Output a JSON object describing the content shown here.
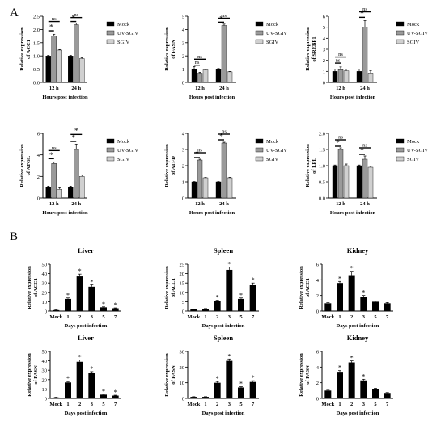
{
  "panels": [
    {
      "letter": "A"
    },
    {
      "letter": "B"
    }
  ],
  "chart_data": [
    {
      "type": "bar",
      "panel": "A",
      "categories": [
        "12 h",
        "24 h"
      ],
      "series": [
        {
          "name": "Mock",
          "color": "#000000",
          "values": [
            1.0,
            1.0
          ],
          "errors": [
            0.02,
            0.02
          ]
        },
        {
          "name": "UV-SGIV",
          "color": "#9a9a9a",
          "values": [
            1.75,
            2.18
          ],
          "errors": [
            0.07,
            0.06
          ]
        },
        {
          "name": "SGIV",
          "color": "#d0d0d0",
          "values": [
            1.22,
            0.9
          ],
          "errors": [
            0.02,
            0.03
          ]
        }
      ],
      "xlabel": "Hours post infection",
      "ylabel": [
        "Relative expression",
        "of ACC1"
      ],
      "ylim": [
        0,
        2.5
      ],
      "yticks": [
        0.0,
        0.5,
        1.0,
        1.5,
        2.0,
        2.5
      ],
      "ytick_labels": [
        "0.0",
        "0.5",
        "1.0",
        "1.5",
        "2.0",
        "2.5"
      ],
      "legend": "right",
      "annotations": [
        {
          "text": "ns",
          "category": 0,
          "from": 0,
          "to": 2,
          "y": 2.3
        },
        {
          "text": "*",
          "category": 0,
          "from": 0,
          "to": 1,
          "y": 1.95
        },
        {
          "text": "ns",
          "category": 1,
          "from": 0,
          "to": 2,
          "y": 2.45
        },
        {
          "text": "*",
          "category": 1,
          "from": 0,
          "to": 1,
          "y": 2.3
        }
      ]
    },
    {
      "type": "bar",
      "panel": "A",
      "categories": [
        "12 h",
        "24 h"
      ],
      "series": [
        {
          "name": "Mock",
          "color": "#000000",
          "values": [
            1.0,
            1.0
          ],
          "errors": [
            0.2,
            0.05
          ]
        },
        {
          "name": "UV-SGIV",
          "color": "#9a9a9a",
          "values": [
            0.7,
            4.3
          ],
          "errors": [
            0.07,
            0.1
          ]
        },
        {
          "name": "SGIV",
          "color": "#d0d0d0",
          "values": [
            0.95,
            0.8
          ],
          "errors": [
            0.03,
            0.03
          ]
        }
      ],
      "xlabel": "Hours post infection",
      "ylabel": [
        "Relative expression",
        "of FASN"
      ],
      "ylim": [
        0,
        5
      ],
      "yticks": [
        0,
        1,
        2,
        3,
        4,
        5
      ],
      "ytick_labels": [
        "0",
        "1",
        "2",
        "3",
        "4",
        "5"
      ],
      "legend": "right",
      "annotations": [
        {
          "text": "ns",
          "category": 0,
          "from": 0,
          "to": 2,
          "y": 1.75
        },
        {
          "text": "ns",
          "category": 0,
          "from": 0,
          "to": 1,
          "y": 1.3
        },
        {
          "text": "ns",
          "category": 1,
          "from": 0,
          "to": 2,
          "y": 4.85
        },
        {
          "text": "*",
          "category": 1,
          "from": 0,
          "to": 1,
          "y": 4.55
        }
      ]
    },
    {
      "type": "bar",
      "panel": "A",
      "categories": [
        "12 h",
        "24 h"
      ],
      "series": [
        {
          "name": "Mock",
          "color": "#000000",
          "values": [
            1.0,
            1.0
          ],
          "errors": [
            0.2,
            0.2
          ]
        },
        {
          "name": "UV-SGIV",
          "color": "#9a9a9a",
          "values": [
            1.15,
            5.0
          ],
          "errors": [
            0.25,
            0.6
          ]
        },
        {
          "name": "SGIV",
          "color": "#d0d0d0",
          "values": [
            1.05,
            0.85
          ],
          "errors": [
            0.15,
            0.2
          ]
        }
      ],
      "xlabel": "Hours post infection",
      "ylabel": [
        "Relative expression",
        "of SREBP1"
      ],
      "ylim": [
        0,
        6
      ],
      "yticks": [
        0,
        1,
        2,
        3,
        4,
        5,
        6
      ],
      "ytick_labels": [
        "0",
        "1",
        "2",
        "3",
        "4",
        "5",
        "6"
      ],
      "legend": "right",
      "annotations": [
        {
          "text": "ns",
          "category": 0,
          "from": 0,
          "to": 2,
          "y": 2.3
        },
        {
          "text": "ns",
          "category": 0,
          "from": 0,
          "to": 1,
          "y": 1.75
        },
        {
          "text": "ns",
          "category": 1,
          "from": 0,
          "to": 2,
          "y": 6.4
        },
        {
          "text": "*",
          "category": 1,
          "from": 0,
          "to": 1,
          "y": 5.9
        }
      ]
    },
    {
      "type": "bar",
      "panel": "A",
      "categories": [
        "12 h",
        "24 h"
      ],
      "series": [
        {
          "name": "Mock",
          "color": "#000000",
          "values": [
            1.0,
            1.0
          ],
          "errors": [
            0.1,
            0.1
          ]
        },
        {
          "name": "UV-SGIV",
          "color": "#9a9a9a",
          "values": [
            3.2,
            4.5
          ],
          "errors": [
            0.15,
            0.5
          ]
        },
        {
          "name": "SGIV",
          "color": "#d0d0d0",
          "values": [
            0.8,
            2.0
          ],
          "errors": [
            0.15,
            0.15
          ]
        }
      ],
      "xlabel": "Hours post infection",
      "ylabel": [
        "Relative expression",
        "of ATGL"
      ],
      "ylim": [
        0,
        6
      ],
      "yticks": [
        0,
        2,
        4,
        6
      ],
      "ytick_labels": [
        "0",
        "2",
        "4",
        "6"
      ],
      "legend": "right",
      "annotations": [
        {
          "text": "ns",
          "category": 0,
          "from": 0,
          "to": 2,
          "y": 4.4
        },
        {
          "text": "*",
          "category": 0,
          "from": 0,
          "to": 1,
          "y": 3.65
        },
        {
          "text": "*",
          "category": 1,
          "from": 0,
          "to": 2,
          "y": 5.9
        },
        {
          "text": "*",
          "category": 1,
          "from": 0,
          "to": 1,
          "y": 5.25
        }
      ]
    },
    {
      "type": "bar",
      "panel": "A",
      "categories": [
        "12 h",
        "24 h"
      ],
      "series": [
        {
          "name": "Mock",
          "color": "#000000",
          "values": [
            1.0,
            1.0
          ],
          "errors": [
            0.02,
            0.02
          ]
        },
        {
          "name": "UV-SGIV",
          "color": "#9a9a9a",
          "values": [
            2.35,
            3.4
          ],
          "errors": [
            0.05,
            0.05
          ]
        },
        {
          "name": "SGIV",
          "color": "#d0d0d0",
          "values": [
            1.25,
            1.25
          ],
          "errors": [
            0.02,
            0.03
          ]
        }
      ],
      "xlabel": "Hours post infection",
      "ylabel": [
        "Relative expression",
        "of ATFD"
      ],
      "ylim": [
        0,
        4
      ],
      "yticks": [
        0,
        1,
        2,
        3,
        4
      ],
      "ytick_labels": [
        "0",
        "1",
        "2",
        "3",
        "4"
      ],
      "legend": "right",
      "annotations": [
        {
          "text": "ns",
          "category": 0,
          "from": 0,
          "to": 2,
          "y": 2.8
        },
        {
          "text": "*",
          "category": 0,
          "from": 0,
          "to": 1,
          "y": 2.5
        },
        {
          "text": "ns",
          "category": 1,
          "from": 0,
          "to": 2,
          "y": 3.95
        },
        {
          "text": "*",
          "category": 1,
          "from": 0,
          "to": 1,
          "y": 3.6
        }
      ]
    },
    {
      "type": "bar",
      "panel": "A",
      "categories": [
        "12 h",
        "24 h"
      ],
      "series": [
        {
          "name": "Mock",
          "color": "#000000",
          "values": [
            1.0,
            1.0
          ],
          "errors": [
            0.02,
            0.02
          ]
        },
        {
          "name": "UV-SGIV",
          "color": "#9a9a9a",
          "values": [
            1.5,
            1.2
          ],
          "errors": [
            0.05,
            0.1
          ]
        },
        {
          "name": "SGIV",
          "color": "#d0d0d0",
          "values": [
            1.0,
            0.95
          ],
          "errors": [
            0.05,
            0.03
          ]
        }
      ],
      "xlabel": "Hours post infection",
      "ylabel": [
        "Relative expression",
        "of LPL"
      ],
      "ylim": [
        0,
        2
      ],
      "yticks": [
        0.0,
        0.5,
        1.0,
        1.5,
        2.0
      ],
      "ytick_labels": [
        "0.0",
        "0.5",
        "1.0",
        "1.5",
        "2.0"
      ],
      "legend": "right",
      "annotations": [
        {
          "text": "ns",
          "category": 0,
          "from": 0,
          "to": 2,
          "y": 1.8
        },
        {
          "text": "*",
          "category": 0,
          "from": 0,
          "to": 1,
          "y": 1.6
        },
        {
          "text": "ns",
          "category": 1,
          "from": 0,
          "to": 2,
          "y": 1.55
        },
        {
          "text": "*",
          "category": 1,
          "from": 0,
          "to": 1,
          "y": 1.35
        }
      ]
    },
    {
      "type": "bar",
      "panel": "B",
      "title": "Liver",
      "categories": [
        "Mock",
        "1",
        "2",
        "3",
        "5",
        "7"
      ],
      "values": [
        1,
        13,
        37,
        26,
        4,
        3
      ],
      "errors": [
        0.3,
        1,
        2.5,
        2,
        0.5,
        0.4
      ],
      "significance": [
        "",
        "*",
        "*",
        "*",
        "*",
        "*"
      ],
      "color": "#000000",
      "xlabel": "Days post infection",
      "ylabel": [
        "Relative expression",
        "of ACC1"
      ],
      "ylim": [
        0,
        50
      ],
      "yticks": [
        0,
        10,
        20,
        30,
        40,
        50
      ],
      "ytick_labels": [
        "0",
        "10",
        "20",
        "30",
        "40",
        "50"
      ]
    },
    {
      "type": "bar",
      "panel": "B",
      "title": "Spleen",
      "categories": [
        "Mock",
        "1",
        "2",
        "3",
        "5",
        "7"
      ],
      "values": [
        1,
        1.2,
        5.2,
        22,
        6.5,
        13.8
      ],
      "errors": [
        0.1,
        0.15,
        0.6,
        1.5,
        0.5,
        1.2
      ],
      "significance": [
        "",
        "",
        "*",
        "*",
        "*",
        "*"
      ],
      "color": "#000000",
      "xlabel": "Days post infection",
      "ylabel": [
        "Relative expression",
        "of ACC1"
      ],
      "ylim": [
        0,
        25
      ],
      "yticks": [
        0,
        5,
        10,
        15,
        20,
        25
      ],
      "ytick_labels": [
        "0",
        "5",
        "10",
        "15",
        "20",
        "25"
      ]
    },
    {
      "type": "bar",
      "panel": "B",
      "title": "Kidney",
      "categories": [
        "Mock",
        "1",
        "2",
        "3",
        "5",
        "7"
      ],
      "values": [
        1,
        3.6,
        4.6,
        1.8,
        1.2,
        1.0
      ],
      "errors": [
        0.1,
        0.2,
        0.5,
        0.2,
        0.1,
        0.1
      ],
      "significance": [
        "",
        "*",
        "*",
        "*",
        "",
        ""
      ],
      "color": "#000000",
      "xlabel": "Days post infection",
      "ylabel": [
        "Relative expression",
        "of ACC1"
      ],
      "ylim": [
        0,
        6
      ],
      "yticks": [
        0,
        2,
        4,
        6
      ],
      "ytick_labels": [
        "0",
        "2",
        "4",
        "6"
      ]
    },
    {
      "type": "bar",
      "panel": "B",
      "title": "Liver",
      "categories": [
        "Mock",
        "1",
        "2",
        "3",
        "5",
        "7"
      ],
      "values": [
        1,
        17,
        39,
        27,
        4,
        3
      ],
      "errors": [
        0.3,
        1,
        2,
        1.5,
        0.5,
        0.4
      ],
      "significance": [
        "",
        "*",
        "*",
        "*",
        "*",
        "*"
      ],
      "color": "#000000",
      "xlabel": "Days post infection",
      "ylabel": [
        "Relative expression",
        "of FASN"
      ],
      "ylim": [
        0,
        50
      ],
      "yticks": [
        0,
        10,
        20,
        30,
        40,
        50
      ],
      "ytick_labels": [
        "0",
        "10",
        "20",
        "30",
        "40",
        "50"
      ]
    },
    {
      "type": "bar",
      "panel": "B",
      "title": "Spleen",
      "categories": [
        "Mock",
        "1",
        "2",
        "3",
        "5",
        "7"
      ],
      "values": [
        1,
        1,
        10,
        24,
        7,
        10.5
      ],
      "errors": [
        0.1,
        0.1,
        0.8,
        1.2,
        0.5,
        0.8
      ],
      "significance": [
        "",
        "",
        "*",
        "*",
        "*",
        "*"
      ],
      "color": "#000000",
      "xlabel": "Days post infection",
      "ylabel": [
        "Relative expression",
        "of FASN"
      ],
      "ylim": [
        0,
        30
      ],
      "yticks": [
        0,
        10,
        20,
        30
      ],
      "ytick_labels": [
        "0",
        "10",
        "20",
        "30"
      ]
    },
    {
      "type": "bar",
      "panel": "B",
      "title": "Kidney",
      "categories": [
        "Mock",
        "1",
        "2",
        "3",
        "5",
        "7"
      ],
      "values": [
        1,
        3.4,
        4.6,
        2.3,
        1.2,
        0.7
      ],
      "errors": [
        0.05,
        0.15,
        0.2,
        0.15,
        0.1,
        0.05
      ],
      "significance": [
        "",
        "*",
        "*",
        "*",
        "",
        ""
      ],
      "color": "#000000",
      "xlabel": "Days post infection",
      "ylabel": [
        "Relative expression",
        "of FASN"
      ],
      "ylim": [
        0,
        6
      ],
      "yticks": [
        0,
        2,
        4,
        6
      ],
      "ytick_labels": [
        "0",
        "2",
        "4",
        "6"
      ]
    }
  ]
}
